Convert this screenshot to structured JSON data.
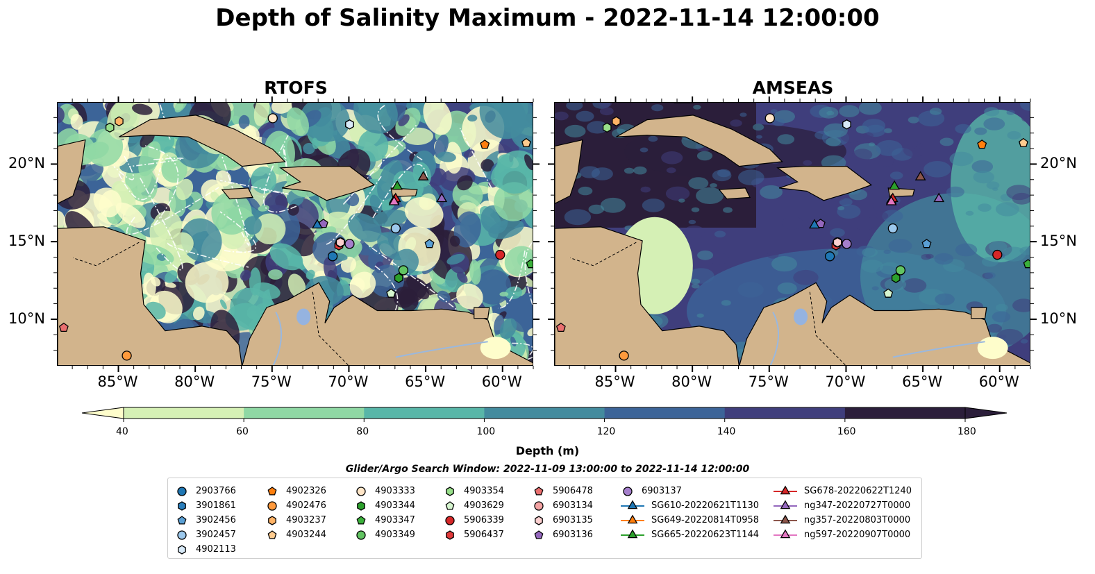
{
  "title": "Depth of Salinity Maximum - 2022-11-14 12:00:00",
  "panels": [
    {
      "title": "RTOFS"
    },
    {
      "title": "AMSEAS"
    }
  ],
  "axes": {
    "x_ticks": [
      "85°W",
      "80°W",
      "75°W",
      "70°W",
      "65°W",
      "60°W"
    ],
    "x_tick_values": [
      -85,
      -80,
      -75,
      -70,
      -65,
      -60
    ],
    "y_ticks": [
      "20°N",
      "15°N",
      "10°N"
    ],
    "y_tick_values": [
      20,
      15,
      10
    ],
    "xlim": [
      -89,
      -58
    ],
    "ylim": [
      7,
      24
    ]
  },
  "colorbar": {
    "label": "Depth (m)",
    "ticks": [
      "40",
      "60",
      "80",
      "100",
      "120",
      "140",
      "160",
      "180"
    ],
    "colors": [
      "#fefdcb",
      "#d5f0b5",
      "#8fd8a4",
      "#58b6a8",
      "#438b9e",
      "#3c6498",
      "#3f3e7c",
      "#2b1e3a"
    ]
  },
  "search_window": "Glider/Argo Search Window: 2022-11-09 13:00:00 to 2022-11-14 12:00:00",
  "legend": [
    {
      "label": "2903766",
      "marker": "circle",
      "color": "#1f77b4"
    },
    {
      "label": "3901861",
      "marker": "hexagon",
      "color": "#2a7ebb"
    },
    {
      "label": "3902456",
      "marker": "pentagon",
      "color": "#5a9fd4"
    },
    {
      "label": "3902457",
      "marker": "circle",
      "color": "#9cc8ec"
    },
    {
      "label": "4902113",
      "marker": "hexagon",
      "color": "#d8eaf8"
    },
    {
      "label": "4902326",
      "marker": "pentagon",
      "color": "#ff7f0e"
    },
    {
      "label": "4902476",
      "marker": "circle",
      "color": "#ff9a3c"
    },
    {
      "label": "4903237",
      "marker": "hexagon",
      "color": "#ffb366"
    },
    {
      "label": "4903244",
      "marker": "pentagon",
      "color": "#ffcb8e"
    },
    {
      "label": "4903333",
      "marker": "circle",
      "color": "#ffe6c8"
    },
    {
      "label": "4903344",
      "marker": "hexagon",
      "color": "#2ca02c"
    },
    {
      "label": "4903347",
      "marker": "pentagon",
      "color": "#3bb03b"
    },
    {
      "label": "4903349",
      "marker": "circle",
      "color": "#62c462"
    },
    {
      "label": "4903354",
      "marker": "hexagon",
      "color": "#98df8a"
    },
    {
      "label": "4903629",
      "marker": "pentagon",
      "color": "#d6f5cf"
    },
    {
      "label": "5906339",
      "marker": "circle",
      "color": "#d62728"
    },
    {
      "label": "5906437",
      "marker": "hexagon",
      "color": "#e0393a"
    },
    {
      "label": "5906478",
      "marker": "pentagon",
      "color": "#ea6f6f"
    },
    {
      "label": "6903134",
      "marker": "circle",
      "color": "#f4a3a3"
    },
    {
      "label": "6903135",
      "marker": "hexagon",
      "color": "#fcd0d0"
    },
    {
      "label": "6903136",
      "marker": "pentagon",
      "color": "#9467bd"
    },
    {
      "label": "6903137",
      "marker": "circle",
      "color": "#a57fcc"
    },
    {
      "label": "SG610-20220621T1130",
      "marker": "triangle",
      "color": "#1f77b4"
    },
    {
      "label": "SG649-20220814T0958",
      "marker": "triangle",
      "color": "#ff7f0e"
    },
    {
      "label": "SG665-20220623T1144",
      "marker": "triangle",
      "color": "#2ca02c"
    },
    {
      "label": "SG678-20220622T1240",
      "marker": "triangle",
      "color": "#d62728"
    },
    {
      "label": "ng347-20220727T0000",
      "marker": "triangle",
      "color": "#9467bd"
    },
    {
      "label": "ng357-20220803T0000",
      "marker": "triangle",
      "color": "#8c564b"
    },
    {
      "label": "ng597-20220907T0000",
      "marker": "triangle",
      "color": "#e377c2"
    }
  ],
  "chart_data": {
    "type": "heatmap",
    "value_label": "Depth (m)",
    "scale_bins": [
      40,
      60,
      80,
      100,
      120,
      140,
      160,
      180
    ],
    "observations": [
      {
        "id": "2903766",
        "lon": -71.1,
        "lat": 14.1
      },
      {
        "id": "3901861",
        "lon": -70.0,
        "lat": 22.6
      },
      {
        "id": "3902456",
        "lon": -64.8,
        "lat": 14.9
      },
      {
        "id": "3902457",
        "lon": -67.0,
        "lat": 15.9
      },
      {
        "id": "4902113",
        "lon": -70.0,
        "lat": 22.6
      },
      {
        "id": "4902326",
        "lon": -61.2,
        "lat": 21.3
      },
      {
        "id": "4902476",
        "lon": -84.5,
        "lat": 7.7
      },
      {
        "id": "4903237",
        "lon": -85.0,
        "lat": 22.8
      },
      {
        "id": "4903244",
        "lon": -58.5,
        "lat": 21.4
      },
      {
        "id": "4903333",
        "lon": -75.0,
        "lat": 23.0
      },
      {
        "id": "4903344",
        "lon": -66.8,
        "lat": 12.7
      },
      {
        "id": "4903347",
        "lon": -58.2,
        "lat": 13.6
      },
      {
        "id": "4903349",
        "lon": -66.5,
        "lat": 13.2
      },
      {
        "id": "4903354",
        "lon": -85.6,
        "lat": 22.4
      },
      {
        "id": "4903629",
        "lon": -67.3,
        "lat": 11.7
      },
      {
        "id": "5906339",
        "lon": -60.2,
        "lat": 14.2
      },
      {
        "id": "5906437",
        "lon": -70.7,
        "lat": 14.8
      },
      {
        "id": "5906478",
        "lon": -88.6,
        "lat": 9.5
      },
      {
        "id": "6903134",
        "lon": -70.6,
        "lat": 15.0
      },
      {
        "id": "6903135",
        "lon": -70.6,
        "lat": 15.0
      },
      {
        "id": "6903136",
        "lon": -71.7,
        "lat": 16.2
      },
      {
        "id": "6903137",
        "lon": -70.0,
        "lat": 14.9
      },
      {
        "id": "SG610-20220621T1130",
        "lon": -72.1,
        "lat": 16.1
      },
      {
        "id": "SG649-20220814T0958",
        "lon": -67.1,
        "lat": 17.7
      },
      {
        "id": "SG665-20220623T1144",
        "lon": -66.9,
        "lat": 18.6
      },
      {
        "id": "SG678-20220622T1240",
        "lon": -67.0,
        "lat": 17.8
      },
      {
        "id": "ng347-20220727T0000",
        "lon": -64.0,
        "lat": 17.8
      },
      {
        "id": "ng357-20220803T0000",
        "lon": -65.2,
        "lat": 19.2
      },
      {
        "id": "ng597-20220907T0000",
        "lon": -67.1,
        "lat": 17.6
      }
    ]
  }
}
